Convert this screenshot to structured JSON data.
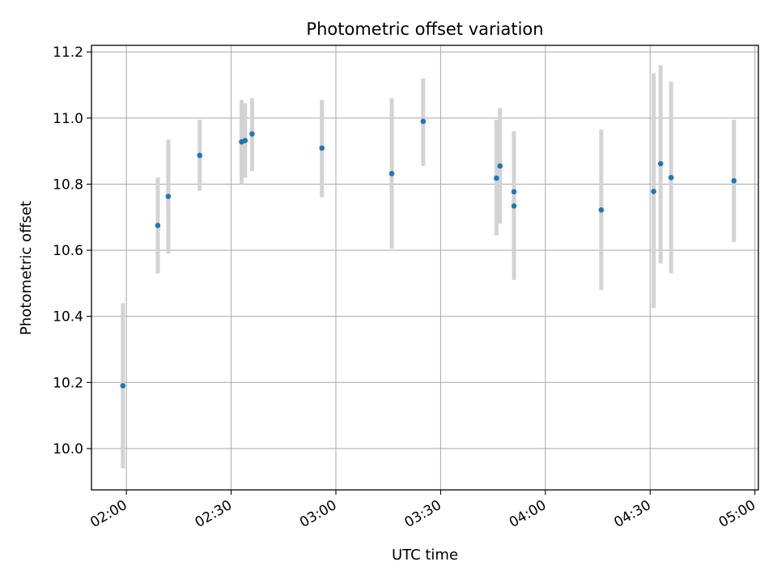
{
  "chart_data": {
    "type": "scatter",
    "title": "Photometric offset variation",
    "xlabel": "UTC time",
    "ylabel": "Photometric offset",
    "x_ticks": [
      "02:00",
      "02:30",
      "03:00",
      "03:30",
      "04:00",
      "04:30",
      "05:00"
    ],
    "y_ticks": [
      "10.0",
      "10.2",
      "10.4",
      "10.6",
      "10.8",
      "11.0",
      "11.2"
    ],
    "xlim": [
      "01:50",
      "05:01"
    ],
    "ylim": [
      9.875,
      11.22
    ],
    "grid": true,
    "legend": "none",
    "series": [
      {
        "marker_color": "#1f77b4",
        "errorbar_color": "#d3d3d3",
        "points": [
          {
            "x": "01:59",
            "y": 10.19,
            "ylow": 9.94,
            "yhigh": 10.44
          },
          {
            "x": "02:09",
            "y": 10.675,
            "ylow": 10.53,
            "yhigh": 10.82
          },
          {
            "x": "02:12",
            "y": 10.763,
            "ylow": 10.59,
            "yhigh": 10.935
          },
          {
            "x": "02:21",
            "y": 10.887,
            "ylow": 10.78,
            "yhigh": 10.995
          },
          {
            "x": "02:33",
            "y": 10.928,
            "ylow": 10.8,
            "yhigh": 11.055
          },
          {
            "x": "02:34",
            "y": 10.932,
            "ylow": 10.82,
            "yhigh": 11.045
          },
          {
            "x": "02:36",
            "y": 10.952,
            "ylow": 10.84,
            "yhigh": 11.06
          },
          {
            "x": "02:56",
            "y": 10.909,
            "ylow": 10.76,
            "yhigh": 11.055
          },
          {
            "x": "03:16",
            "y": 10.832,
            "ylow": 10.605,
            "yhigh": 11.06
          },
          {
            "x": "03:25",
            "y": 10.99,
            "ylow": 10.855,
            "yhigh": 11.12
          },
          {
            "x": "03:46",
            "y": 10.818,
            "ylow": 10.645,
            "yhigh": 10.995
          },
          {
            "x": "03:47",
            "y": 10.855,
            "ylow": 10.68,
            "yhigh": 11.03
          },
          {
            "x": "03:51",
            "y": 10.777,
            "ylow": 10.59,
            "yhigh": 10.96
          },
          {
            "x": "03:51",
            "y": 10.734,
            "ylow": 10.51,
            "yhigh": 10.96
          },
          {
            "x": "04:16",
            "y": 10.722,
            "ylow": 10.48,
            "yhigh": 10.965
          },
          {
            "x": "04:31",
            "y": 10.778,
            "ylow": 10.425,
            "yhigh": 11.135
          },
          {
            "x": "04:33",
            "y": 10.862,
            "ylow": 10.56,
            "yhigh": 11.16
          },
          {
            "x": "04:36",
            "y": 10.82,
            "ylow": 10.53,
            "yhigh": 11.11
          },
          {
            "x": "04:54",
            "y": 10.81,
            "ylow": 10.625,
            "yhigh": 10.995
          }
        ]
      }
    ]
  }
}
